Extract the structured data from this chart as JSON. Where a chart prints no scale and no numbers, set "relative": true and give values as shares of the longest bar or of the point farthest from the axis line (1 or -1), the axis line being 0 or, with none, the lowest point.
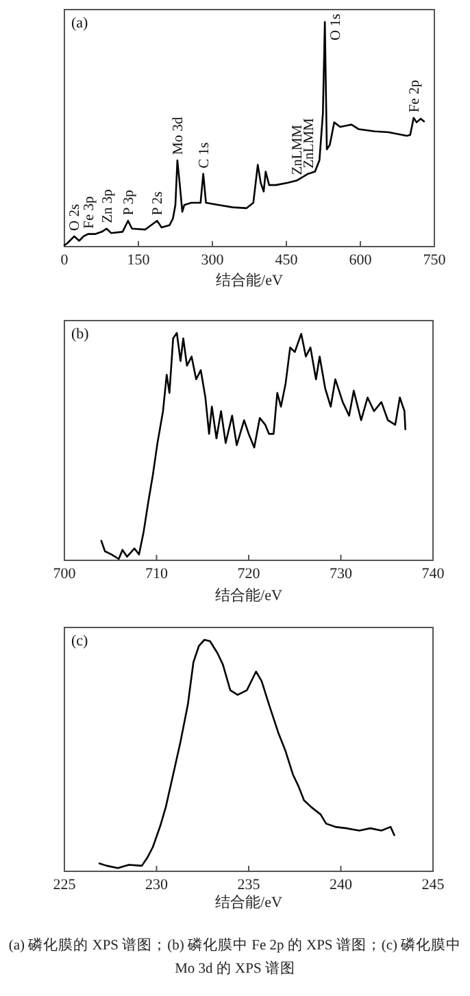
{
  "chart_data": [
    {
      "type": "line",
      "relative": true,
      "xlabel": "结合能/eV",
      "xlim": [
        0,
        750
      ],
      "xticks": [
        0,
        150,
        300,
        450,
        600,
        750
      ],
      "grid": false,
      "marker": "none",
      "line_style": "solid",
      "annotations": [
        "(a)",
        {
          "text": "O 2s",
          "x": 20,
          "y": 0.046
        },
        {
          "text": "Fe 3p",
          "x": 48,
          "y": 0.056
        },
        {
          "text": "Zn 3p",
          "x": 85.5,
          "y": 0.08
        },
        {
          "text": "P 3p",
          "x": 129,
          "y": 0.115
        },
        {
          "text": "P 2s",
          "x": 188,
          "y": 0.115
        },
        {
          "text": "Mo 3d",
          "x": 229,
          "y": 0.384
        },
        {
          "text": "C 1s",
          "x": 281.5,
          "y": 0.324
        },
        {
          "text": "ZnLMM",
          "x": 471,
          "y": 0.294
        },
        {
          "text": "ZnLMM",
          "x": 494,
          "y": 0.324
        },
        {
          "text": "O 1s",
          "x": 528,
          "y": 1.0
        },
        {
          "text": "Fe 2p",
          "x": 708,
          "y": 0.573
        }
      ],
      "series": [
        {
          "color": "#000000",
          "x": [
            0,
            6.5,
            20,
            30,
            39,
            48,
            62,
            76,
            85.5,
            95,
            118,
            129,
            137,
            164,
            188,
            197,
            213,
            220,
            225,
            229,
            234,
            239,
            243,
            257,
            276,
            281.5,
            287,
            313,
            341,
            369,
            383,
            392,
            398,
            404,
            408,
            415,
            429,
            453,
            471,
            494,
            508,
            517,
            524,
            528,
            532,
            538,
            547,
            559,
            582,
            596,
            629,
            657,
            694,
            701,
            708,
            714,
            722,
            729
          ],
          "values": [
            0.006,
            0.016,
            0.046,
            0.026,
            0.046,
            0.056,
            0.056,
            0.066,
            0.08,
            0.06,
            0.066,
            0.115,
            0.08,
            0.076,
            0.115,
            0.085,
            0.095,
            0.125,
            0.185,
            0.384,
            0.274,
            0.155,
            0.185,
            0.195,
            0.195,
            0.324,
            0.195,
            0.185,
            0.175,
            0.171,
            0.195,
            0.364,
            0.284,
            0.245,
            0.334,
            0.274,
            0.274,
            0.284,
            0.294,
            0.324,
            0.334,
            0.384,
            0.592,
            1.0,
            0.433,
            0.453,
            0.553,
            0.533,
            0.543,
            0.523,
            0.513,
            0.509,
            0.493,
            0.497,
            0.573,
            0.553,
            0.569,
            0.557
          ]
        }
      ]
    },
    {
      "type": "line",
      "relative": true,
      "xlabel": "结合能/eV",
      "xlim": [
        700,
        740
      ],
      "xticks": [
        700,
        710,
        720,
        730,
        740
      ],
      "grid": false,
      "marker": "none",
      "line_style": "solid",
      "annotations": [
        "(b)"
      ],
      "series": [
        {
          "color": "#000000",
          "x": [
            704.0,
            704.4,
            705.1,
            705.9,
            706.3,
            706.8,
            707.6,
            708.1,
            708.6,
            709.1,
            709.6,
            710.1,
            710.7,
            711.1,
            711.4,
            711.8,
            712.2,
            712.6,
            712.9,
            713.3,
            713.8,
            714.3,
            714.8,
            715.3,
            715.7,
            716.0,
            716.5,
            717.0,
            717.5,
            718.2,
            718.7,
            719.5,
            720.0,
            720.6,
            721.2,
            721.8,
            722.2,
            722.7,
            723.1,
            723.5,
            724.0,
            724.5,
            725.0,
            725.7,
            726.2,
            726.7,
            727.3,
            727.7,
            728.3,
            728.9,
            729.4,
            730.2,
            730.9,
            731.4,
            732.2,
            732.9,
            733.6,
            734.4,
            735.1,
            735.9,
            736.4,
            736.9,
            737.0
          ],
          "values": [
            0.086,
            0.04,
            0.026,
            0.006,
            0.046,
            0.016,
            0.052,
            0.026,
            0.126,
            0.256,
            0.376,
            0.516,
            0.656,
            0.816,
            0.736,
            0.976,
            1.0,
            0.876,
            0.976,
            0.856,
            0.896,
            0.796,
            0.836,
            0.716,
            0.556,
            0.676,
            0.536,
            0.656,
            0.516,
            0.636,
            0.506,
            0.616,
            0.556,
            0.496,
            0.626,
            0.596,
            0.556,
            0.556,
            0.736,
            0.676,
            0.776,
            0.936,
            0.916,
            0.996,
            0.896,
            0.936,
            0.796,
            0.896,
            0.756,
            0.676,
            0.796,
            0.696,
            0.636,
            0.746,
            0.616,
            0.716,
            0.656,
            0.696,
            0.616,
            0.596,
            0.716,
            0.656,
            0.576
          ]
        }
      ]
    },
    {
      "type": "line",
      "relative": true,
      "xlabel": "结合能/eV",
      "xlim": [
        225,
        245
      ],
      "xticks": [
        225,
        230,
        235,
        240,
        245
      ],
      "grid": false,
      "marker": "none",
      "line_style": "solid",
      "annotations": [
        "(c)",
        "(a) 磷化膜的 XPS 谱图；(b) 磷化膜中 Fe 2p 的 XPS 谱图；(c) 磷化膜中 Mo 3d 的 XPS 谱图"
      ],
      "series": [
        {
          "color": "#000000",
          "x": [
            226.9,
            227.3,
            227.9,
            228.5,
            229.2,
            229.5,
            229.8,
            230.2,
            230.5,
            230.9,
            231.3,
            231.7,
            232.0,
            232.3,
            232.6,
            232.9,
            233.3,
            233.6,
            234.0,
            234.4,
            234.9,
            235.4,
            235.7,
            236.1,
            236.6,
            237.0,
            237.4,
            237.7,
            238.0,
            238.4,
            238.9,
            239.2,
            239.7,
            240.3,
            241.0,
            241.6,
            242.2,
            242.7,
            242.9
          ],
          "values": [
            0.034,
            0.024,
            0.014,
            0.028,
            0.024,
            0.059,
            0.105,
            0.196,
            0.277,
            0.418,
            0.56,
            0.721,
            0.903,
            0.974,
            1.0,
            0.994,
            0.943,
            0.893,
            0.782,
            0.762,
            0.782,
            0.863,
            0.822,
            0.721,
            0.6,
            0.519,
            0.418,
            0.368,
            0.307,
            0.277,
            0.246,
            0.206,
            0.192,
            0.186,
            0.176,
            0.186,
            0.176,
            0.192,
            0.156
          ]
        }
      ]
    }
  ]
}
